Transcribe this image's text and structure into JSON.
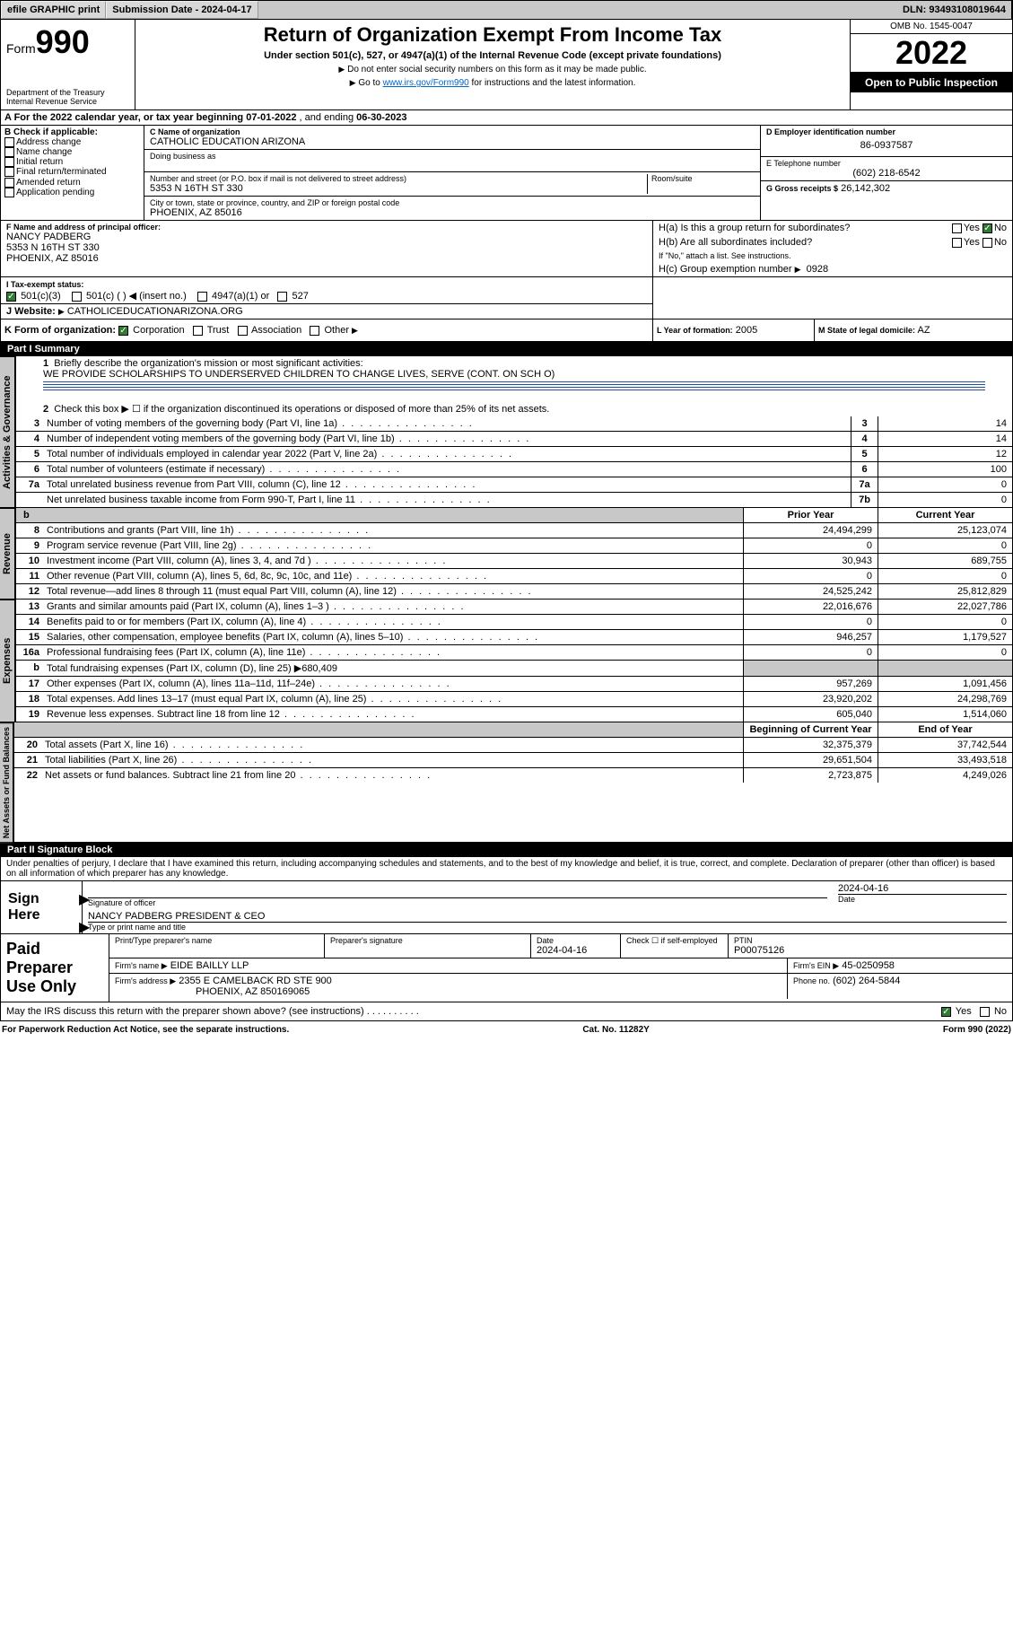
{
  "topbar": {
    "efile": "efile GRAPHIC print",
    "submission_label": "Submission Date - 2024-04-17",
    "dln": "DLN: 93493108019644"
  },
  "header": {
    "form_word": "Form",
    "form_num": "990",
    "dept": "Department of the Treasury",
    "irs": "Internal Revenue Service",
    "title": "Return of Organization Exempt From Income Tax",
    "sub": "Under section 501(c), 527, or 4947(a)(1) of the Internal Revenue Code (except private foundations)",
    "note1": "Do not enter social security numbers on this form as it may be made public.",
    "note2_pre": "Go to ",
    "note2_link": "www.irs.gov/Form990",
    "note2_post": " for instructions and the latest information.",
    "omb": "OMB No. 1545-0047",
    "year": "2022",
    "inspection": "Open to Public Inspection"
  },
  "period": {
    "a_label": "A For the 2022 calendar year, or tax year beginning ",
    "begin": "07-01-2022",
    "mid": " , and ending ",
    "end": "06-30-2023"
  },
  "box_b": {
    "title": "B Check if applicable:",
    "items": [
      "Address change",
      "Name change",
      "Initial return",
      "Final return/terminated",
      "Amended return",
      "Application pending"
    ]
  },
  "box_c": {
    "label": "C Name of organization",
    "name": "CATHOLIC EDUCATION ARIZONA",
    "dba_label": "Doing business as",
    "addr_label": "Number and street (or P.O. box if mail is not delivered to street address)",
    "room_label": "Room/suite",
    "addr": "5353 N 16TH ST 330",
    "city_label": "City or town, state or province, country, and ZIP or foreign postal code",
    "city": "PHOENIX, AZ  85016"
  },
  "box_d": {
    "label": "D Employer identification number",
    "value": "86-0937587"
  },
  "box_e": {
    "label": "E Telephone number",
    "value": "(602) 218-6542"
  },
  "box_g": {
    "label": "G Gross receipts $",
    "value": "26,142,302"
  },
  "box_f": {
    "label": "F Name and address of principal officer:",
    "name": "NANCY PADBERG",
    "addr1": "5353 N 16TH ST 330",
    "addr2": "PHOENIX, AZ  85016"
  },
  "box_h": {
    "ha": "H(a)  Is this a group return for subordinates?",
    "ha_yes": "Yes",
    "ha_no": "No",
    "hb": "H(b)  Are all subordinates included?",
    "hb_note": "If \"No,\" attach a list. See instructions.",
    "hc_label": "H(c)  Group exemption number",
    "hc_val": "0928"
  },
  "box_i": {
    "label": "I   Tax-exempt status:",
    "opts": [
      "501(c)(3)",
      "501(c) (  ) ◀ (insert no.)",
      "4947(a)(1) or",
      "527"
    ]
  },
  "box_j": {
    "label": "J   Website:",
    "value": "CATHOLICEDUCATIONARIZONA.ORG"
  },
  "box_k": {
    "label": "K Form of organization:",
    "opts": [
      "Corporation",
      "Trust",
      "Association",
      "Other"
    ]
  },
  "box_l": {
    "label": "L Year of formation:",
    "value": "2005"
  },
  "box_m": {
    "label": "M State of legal domicile:",
    "value": "AZ"
  },
  "part1": {
    "header": "Part I      Summary",
    "l1_label": "Briefly describe the organization's mission or most significant activities:",
    "l1_text": "WE PROVIDE SCHOLARSHIPS TO UNDERSERVED CHILDREN TO CHANGE LIVES, SERVE (CONT. ON SCH O)",
    "l2": "Check this box ▶ ☐  if the organization discontinued its operations or disposed of more than 25% of its net assets."
  },
  "tabs": {
    "gov": "Activities & Governance",
    "rev": "Revenue",
    "exp": "Expenses",
    "net": "Net Assets or Fund Balances"
  },
  "gov_rows": [
    {
      "n": "3",
      "d": "Number of voting members of the governing body (Part VI, line 1a)",
      "r": "3",
      "v": "14"
    },
    {
      "n": "4",
      "d": "Number of independent voting members of the governing body (Part VI, line 1b)",
      "r": "4",
      "v": "14"
    },
    {
      "n": "5",
      "d": "Total number of individuals employed in calendar year 2022 (Part V, line 2a)",
      "r": "5",
      "v": "12"
    },
    {
      "n": "6",
      "d": "Total number of volunteers (estimate if necessary)",
      "r": "6",
      "v": "100"
    },
    {
      "n": "7a",
      "d": "Total unrelated business revenue from Part VIII, column (C), line 12",
      "r": "7a",
      "v": "0"
    },
    {
      "n": "",
      "d": "Net unrelated business taxable income from Form 990-T, Part I, line 11",
      "r": "7b",
      "v": "0"
    }
  ],
  "yearheads": {
    "b": "b",
    "prior": "Prior Year",
    "current": "Current Year",
    "boy": "Beginning of Current Year",
    "eoy": "End of Year"
  },
  "rev_rows": [
    {
      "n": "8",
      "d": "Contributions and grants (Part VIII, line 1h)",
      "p": "24,494,299",
      "c": "25,123,074"
    },
    {
      "n": "9",
      "d": "Program service revenue (Part VIII, line 2g)",
      "p": "0",
      "c": "0"
    },
    {
      "n": "10",
      "d": "Investment income (Part VIII, column (A), lines 3, 4, and 7d )",
      "p": "30,943",
      "c": "689,755"
    },
    {
      "n": "11",
      "d": "Other revenue (Part VIII, column (A), lines 5, 6d, 8c, 9c, 10c, and 11e)",
      "p": "0",
      "c": "0"
    },
    {
      "n": "12",
      "d": "Total revenue—add lines 8 through 11 (must equal Part VIII, column (A), line 12)",
      "p": "24,525,242",
      "c": "25,812,829"
    }
  ],
  "exp_rows": [
    {
      "n": "13",
      "d": "Grants and similar amounts paid (Part IX, column (A), lines 1–3 )",
      "p": "22,016,676",
      "c": "22,027,786"
    },
    {
      "n": "14",
      "d": "Benefits paid to or for members (Part IX, column (A), line 4)",
      "p": "0",
      "c": "0"
    },
    {
      "n": "15",
      "d": "Salaries, other compensation, employee benefits (Part IX, column (A), lines 5–10)",
      "p": "946,257",
      "c": "1,179,527"
    },
    {
      "n": "16a",
      "d": "Professional fundraising fees (Part IX, column (A), line 11e)",
      "p": "0",
      "c": "0"
    },
    {
      "n": "b",
      "d": "Total fundraising expenses (Part IX, column (D), line 25) ▶680,409",
      "p": "",
      "c": "",
      "grey": true
    },
    {
      "n": "17",
      "d": "Other expenses (Part IX, column (A), lines 11a–11d, 11f–24e)",
      "p": "957,269",
      "c": "1,091,456"
    },
    {
      "n": "18",
      "d": "Total expenses. Add lines 13–17 (must equal Part IX, column (A), line 25)",
      "p": "23,920,202",
      "c": "24,298,769"
    },
    {
      "n": "19",
      "d": "Revenue less expenses. Subtract line 18 from line 12",
      "p": "605,040",
      "c": "1,514,060"
    }
  ],
  "net_rows": [
    {
      "n": "20",
      "d": "Total assets (Part X, line 16)",
      "p": "32,375,379",
      "c": "37,742,544"
    },
    {
      "n": "21",
      "d": "Total liabilities (Part X, line 26)",
      "p": "29,651,504",
      "c": "33,493,518"
    },
    {
      "n": "22",
      "d": "Net assets or fund balances. Subtract line 21 from line 20",
      "p": "2,723,875",
      "c": "4,249,026"
    }
  ],
  "part2": {
    "header": "Part II     Signature Block",
    "declaration": "Under penalties of perjury, I declare that I have examined this return, including accompanying schedules and statements, and to the best of my knowledge and belief, it is true, correct, and complete. Declaration of preparer (other than officer) is based on all information of which preparer has any knowledge."
  },
  "sign": {
    "label": "Sign Here",
    "sig_of_officer": "Signature of officer",
    "date": "2024-04-16",
    "date_label": "Date",
    "name": "NANCY PADBERG  PRESIDENT & CEO",
    "name_label": "Type or print name and title"
  },
  "paid": {
    "label": "Paid Preparer Use Only",
    "h1": "Print/Type preparer's name",
    "h2": "Preparer's signature",
    "h3": "Date",
    "h3v": "2024-04-16",
    "h4": "Check ☐ if self-employed",
    "h5": "PTIN",
    "h5v": "P00075126",
    "firm_name_l": "Firm's name    ▶",
    "firm_name": "EIDE BAILLY LLP",
    "firm_ein_l": "Firm's EIN ▶",
    "firm_ein": "45-0250958",
    "firm_addr_l": "Firm's address ▶",
    "firm_addr1": "2355 E CAMELBACK RD STE 900",
    "firm_addr2": "PHOENIX, AZ  850169065",
    "phone_l": "Phone no.",
    "phone": "(602) 264-5844"
  },
  "discuss": {
    "q": "May the IRS discuss this return with the preparer shown above? (see instructions)",
    "yes": "Yes",
    "no": "No"
  },
  "footer": {
    "left": "For Paperwork Reduction Act Notice, see the separate instructions.",
    "mid": "Cat. No. 11282Y",
    "right": "Form 990 (2022)"
  },
  "colors": {
    "topbar_bg": "#c8c8c8",
    "link": "#0066cc",
    "check_green": "#2e7d32"
  }
}
